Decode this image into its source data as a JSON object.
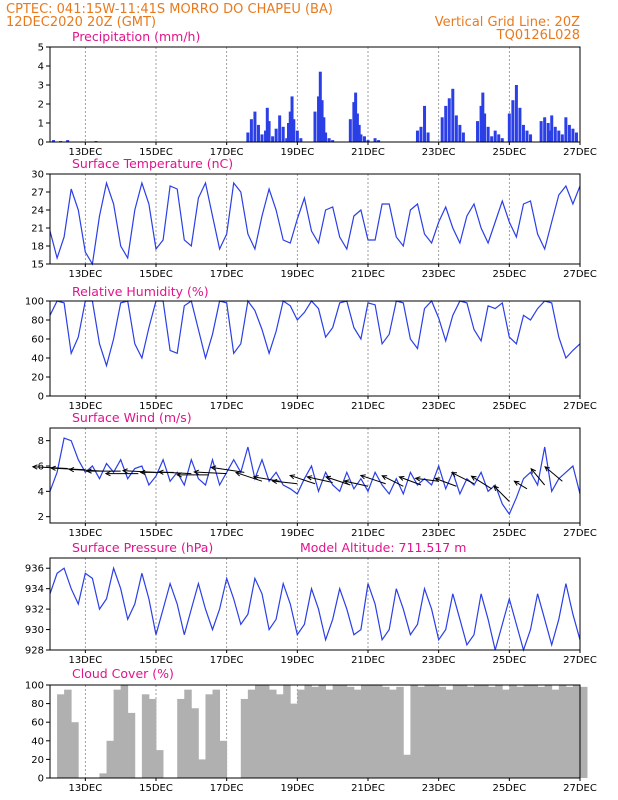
{
  "header": {
    "line1_left": "CPTEC:  041:15W-11:41S  MORRO DO CHAPEU (BA)",
    "line2_left": "12DEC2020 20Z (GMT)",
    "line2_right": "Vertical Grid Line: 20Z",
    "line3_right": "TQ0126L028"
  },
  "colors": {
    "header": "#e87a1e",
    "panel_title": "#e0148c",
    "line": "#2b3fe6",
    "bar": "#2b3fe6",
    "cloud": "#b0b0b0",
    "arrow": "#000000"
  },
  "x_axis": {
    "start_day": 12.0,
    "end_day": 27.0,
    "ticks": [
      {
        "day": 13,
        "label": "13DEC"
      },
      {
        "day": 15,
        "label": "15DEC"
      },
      {
        "day": 17,
        "label": "17DEC"
      },
      {
        "day": 19,
        "label": "19DEC"
      },
      {
        "day": 21,
        "label": "21DEC"
      },
      {
        "day": 23,
        "label": "23DEC"
      },
      {
        "day": 25,
        "label": "25DEC"
      },
      {
        "day": 27,
        "label": "27DEC"
      }
    ]
  },
  "model_altitude": "Model Altitude: 711.517 m",
  "chart_data": [
    {
      "id": "precip",
      "type": "bar",
      "title": "Precipitation (mm/h)",
      "ylim": [
        0,
        5
      ],
      "yticks": [
        0,
        1,
        2,
        3,
        4,
        5
      ],
      "x": [
        12.1,
        12.3,
        12.5,
        13.3,
        17.6,
        17.7,
        17.8,
        17.9,
        18.0,
        18.1,
        18.15,
        18.2,
        18.3,
        18.4,
        18.5,
        18.6,
        18.7,
        18.75,
        18.8,
        18.85,
        18.9,
        19.0,
        19.1,
        19.5,
        19.6,
        19.65,
        19.7,
        19.75,
        19.8,
        19.9,
        20.0,
        20.5,
        20.6,
        20.65,
        20.7,
        20.75,
        20.8,
        20.9,
        21.0,
        21.2,
        21.3,
        22.4,
        22.5,
        22.6,
        22.7,
        23.1,
        23.2,
        23.3,
        23.4,
        23.5,
        23.6,
        23.7,
        24.1,
        24.2,
        24.25,
        24.3,
        24.4,
        24.5,
        24.6,
        24.7,
        24.8,
        25.0,
        25.1,
        25.2,
        25.3,
        25.4,
        25.5,
        25.6,
        25.9,
        26.0,
        26.1,
        26.15,
        26.2,
        26.3,
        26.4,
        26.5,
        26.6,
        26.7,
        26.8,
        26.9
      ],
      "values": [
        0.1,
        0.05,
        0.1,
        0.05,
        0.5,
        1.2,
        1.6,
        0.9,
        0.4,
        0.6,
        1.8,
        1.1,
        0.3,
        0.7,
        1.4,
        0.8,
        0.2,
        1.0,
        1.6,
        2.4,
        1.2,
        0.6,
        0.2,
        1.6,
        2.4,
        3.7,
        2.2,
        1.3,
        0.5,
        0.2,
        0.1,
        1.2,
        2.1,
        2.6,
        1.5,
        0.9,
        0.4,
        0.3,
        0.1,
        0.2,
        0.1,
        0.6,
        0.8,
        1.9,
        0.5,
        1.3,
        1.9,
        2.3,
        2.8,
        1.4,
        0.9,
        0.5,
        1.1,
        1.9,
        2.6,
        1.5,
        0.8,
        0.3,
        0.6,
        0.4,
        0.2,
        1.5,
        2.2,
        3.0,
        1.8,
        0.9,
        0.6,
        0.4,
        1.1,
        1.3,
        1.0,
        0.6,
        1.4,
        0.8,
        0.6,
        0.4,
        1.3,
        0.9,
        0.7,
        0.5
      ]
    },
    {
      "id": "temperature",
      "type": "line",
      "title": "Surface Temperature (nC)",
      "ylim": [
        15,
        30
      ],
      "yticks": [
        15,
        18,
        21,
        24,
        27,
        30
      ],
      "x": [
        12.0,
        12.2,
        12.4,
        12.6,
        12.8,
        13.0,
        13.2,
        13.4,
        13.6,
        13.8,
        14.0,
        14.2,
        14.4,
        14.6,
        14.8,
        15.0,
        15.2,
        15.4,
        15.6,
        15.8,
        16.0,
        16.2,
        16.4,
        16.6,
        16.8,
        17.0,
        17.2,
        17.4,
        17.6,
        17.8,
        18.0,
        18.2,
        18.4,
        18.6,
        18.8,
        19.0,
        19.2,
        19.4,
        19.6,
        19.8,
        20.0,
        20.2,
        20.4,
        20.6,
        20.8,
        21.0,
        21.2,
        21.4,
        21.6,
        21.8,
        22.0,
        22.2,
        22.4,
        22.6,
        22.8,
        23.0,
        23.2,
        23.4,
        23.6,
        23.8,
        24.0,
        24.2,
        24.4,
        24.6,
        24.8,
        25.0,
        25.2,
        25.4,
        25.6,
        25.8,
        26.0,
        26.2,
        26.4,
        26.6,
        26.8,
        27.0
      ],
      "values": [
        20.5,
        16.0,
        19.5,
        27.5,
        24.0,
        17.0,
        15.0,
        23.0,
        28.5,
        25.0,
        18.0,
        16.0,
        24.0,
        28.5,
        25.0,
        17.5,
        19.0,
        28.0,
        27.5,
        19.0,
        18.0,
        26.0,
        28.5,
        23.0,
        17.5,
        20.0,
        28.5,
        27.0,
        20.0,
        17.5,
        23.0,
        27.5,
        24.0,
        19.0,
        18.5,
        22.5,
        26.0,
        20.5,
        18.5,
        24.0,
        24.5,
        19.5,
        17.5,
        23.0,
        24.0,
        19.0,
        19.0,
        25.0,
        25.0,
        19.5,
        18.0,
        24.0,
        25.0,
        20.0,
        18.5,
        22.0,
        24.5,
        21.0,
        18.5,
        23.0,
        25.0,
        21.0,
        18.5,
        22.0,
        25.5,
        22.0,
        19.5,
        25.0,
        25.5,
        20.0,
        17.5,
        22.0,
        26.5,
        28.0,
        25.0,
        28.0
      ]
    },
    {
      "id": "humidity",
      "type": "line",
      "title": "Relative Humidity (%)",
      "ylim": [
        0,
        100
      ],
      "yticks": [
        0,
        20,
        40,
        60,
        80,
        100
      ],
      "x": [
        12.0,
        12.2,
        12.4,
        12.6,
        12.8,
        13.0,
        13.2,
        13.4,
        13.6,
        13.8,
        14.0,
        14.2,
        14.4,
        14.6,
        14.8,
        15.0,
        15.2,
        15.4,
        15.6,
        15.8,
        16.0,
        16.2,
        16.4,
        16.6,
        16.8,
        17.0,
        17.2,
        17.4,
        17.6,
        17.8,
        18.0,
        18.2,
        18.4,
        18.6,
        18.8,
        19.0,
        19.2,
        19.4,
        19.6,
        19.8,
        20.0,
        20.2,
        20.4,
        20.6,
        20.8,
        21.0,
        21.2,
        21.4,
        21.6,
        21.8,
        22.0,
        22.2,
        22.4,
        22.6,
        22.8,
        23.0,
        23.2,
        23.4,
        23.6,
        23.8,
        24.0,
        24.2,
        24.4,
        24.6,
        24.8,
        25.0,
        25.2,
        25.4,
        25.6,
        25.8,
        26.0,
        26.2,
        26.4,
        26.6,
        26.8,
        27.0
      ],
      "values": [
        85,
        100,
        98,
        45,
        62,
        100,
        100,
        55,
        32,
        60,
        98,
        100,
        55,
        40,
        72,
        100,
        100,
        48,
        45,
        95,
        100,
        70,
        40,
        65,
        100,
        98,
        45,
        55,
        100,
        90,
        70,
        45,
        68,
        100,
        95,
        80,
        88,
        100,
        92,
        62,
        72,
        98,
        100,
        72,
        60,
        98,
        96,
        55,
        65,
        100,
        98,
        60,
        50,
        92,
        100,
        82,
        58,
        85,
        100,
        98,
        70,
        58,
        95,
        92,
        98,
        62,
        55,
        85,
        80,
        92,
        100,
        98,
        62,
        40,
        48,
        55
      ]
    },
    {
      "id": "wind",
      "type": "line",
      "title": "Surface Wind (m/s)",
      "ylim": [
        1.5,
        9
      ],
      "yticks": [
        2,
        4,
        6,
        8
      ],
      "x": [
        12.0,
        12.2,
        12.4,
        12.6,
        12.8,
        13.0,
        13.2,
        13.4,
        13.6,
        13.8,
        14.0,
        14.2,
        14.4,
        14.6,
        14.8,
        15.0,
        15.2,
        15.4,
        15.6,
        15.8,
        16.0,
        16.2,
        16.4,
        16.6,
        16.8,
        17.0,
        17.2,
        17.4,
        17.6,
        17.8,
        18.0,
        18.2,
        18.4,
        18.6,
        18.8,
        19.0,
        19.2,
        19.4,
        19.6,
        19.8,
        20.0,
        20.2,
        20.4,
        20.6,
        20.8,
        21.0,
        21.2,
        21.4,
        21.6,
        21.8,
        22.0,
        22.2,
        22.4,
        22.6,
        22.8,
        23.0,
        23.2,
        23.4,
        23.6,
        23.8,
        24.0,
        24.2,
        24.4,
        24.6,
        24.8,
        25.0,
        25.2,
        25.4,
        25.6,
        25.8,
        26.0,
        26.2,
        26.4,
        26.6,
        26.8,
        27.0
      ],
      "values": [
        4.0,
        5.5,
        8.2,
        8.0,
        6.5,
        5.5,
        6.0,
        5.0,
        6.2,
        5.5,
        6.5,
        5.0,
        5.8,
        6.0,
        4.5,
        5.2,
        6.5,
        4.8,
        5.5,
        4.5,
        6.5,
        5.0,
        4.5,
        6.5,
        4.5,
        5.5,
        6.5,
        5.5,
        7.5,
        5.0,
        6.5,
        4.8,
        5.5,
        4.5,
        4.2,
        3.8,
        5.0,
        6.0,
        4.0,
        5.5,
        4.5,
        4.0,
        5.5,
        4.2,
        5.0,
        4.0,
        5.5,
        4.5,
        3.8,
        5.0,
        3.8,
        5.5,
        4.5,
        5.0,
        4.5,
        6.0,
        4.2,
        5.5,
        3.8,
        5.0,
        4.5,
        5.5,
        4.0,
        4.5,
        3.0,
        2.2,
        3.5,
        5.0,
        5.5,
        4.5,
        7.5,
        4.0,
        5.0,
        5.5,
        6.0,
        3.8
      ]
    },
    {
      "id": "pressure",
      "type": "line",
      "title": "Surface Pressure (hPa)",
      "ylim": [
        928,
        937
      ],
      "yticks": [
        928,
        930,
        932,
        934,
        936
      ],
      "x": [
        12.0,
        12.2,
        12.4,
        12.6,
        12.8,
        13.0,
        13.2,
        13.4,
        13.6,
        13.8,
        14.0,
        14.2,
        14.4,
        14.6,
        14.8,
        15.0,
        15.2,
        15.4,
        15.6,
        15.8,
        16.0,
        16.2,
        16.4,
        16.6,
        16.8,
        17.0,
        17.2,
        17.4,
        17.6,
        17.8,
        18.0,
        18.2,
        18.4,
        18.6,
        18.8,
        19.0,
        19.2,
        19.4,
        19.6,
        19.8,
        20.0,
        20.2,
        20.4,
        20.6,
        20.8,
        21.0,
        21.2,
        21.4,
        21.6,
        21.8,
        22.0,
        22.2,
        22.4,
        22.6,
        22.8,
        23.0,
        23.2,
        23.4,
        23.6,
        23.8,
        24.0,
        24.2,
        24.4,
        24.6,
        24.8,
        25.0,
        25.2,
        25.4,
        25.6,
        25.8,
        26.0,
        26.2,
        26.4,
        26.6,
        26.8,
        27.0
      ],
      "values": [
        933.5,
        935.5,
        936.0,
        934.0,
        932.5,
        935.5,
        935.0,
        932.0,
        933.0,
        936.0,
        934.0,
        931.0,
        932.5,
        935.5,
        933.0,
        929.5,
        932.0,
        934.5,
        932.5,
        929.5,
        932.0,
        934.5,
        932.0,
        930.0,
        932.0,
        935.0,
        933.0,
        930.5,
        931.5,
        935.0,
        933.5,
        930.0,
        931.0,
        934.5,
        932.5,
        929.5,
        930.5,
        934.0,
        932.0,
        929.0,
        931.0,
        934.0,
        932.0,
        929.5,
        930.0,
        934.5,
        932.5,
        929.0,
        930.0,
        934.0,
        932.0,
        929.5,
        930.5,
        934.0,
        932.0,
        929.0,
        930.0,
        933.5,
        931.0,
        928.5,
        929.5,
        933.5,
        931.0,
        928.0,
        930.5,
        933.0,
        930.5,
        928.0,
        930.0,
        933.5,
        931.0,
        928.5,
        931.0,
        934.5,
        931.5,
        929.0
      ]
    },
    {
      "id": "cloud",
      "type": "area",
      "title": "Cloud Cover (%)",
      "ylim": [
        0,
        100
      ],
      "yticks": [
        0,
        20,
        40,
        60,
        80,
        100
      ],
      "x": [
        12.0,
        12.2,
        12.4,
        12.6,
        12.8,
        13.0,
        13.2,
        13.4,
        13.6,
        13.8,
        14.0,
        14.2,
        14.4,
        14.6,
        14.8,
        15.0,
        15.2,
        15.4,
        15.6,
        15.8,
        16.0,
        16.2,
        16.4,
        16.6,
        16.8,
        17.0,
        17.2,
        17.4,
        17.6,
        17.8,
        18.0,
        18.2,
        18.4,
        18.6,
        18.8,
        19.0,
        19.2,
        19.4,
        19.6,
        19.8,
        20.0,
        20.2,
        20.4,
        20.6,
        20.8,
        21.0,
        21.2,
        21.4,
        21.6,
        21.8,
        22.0,
        22.2,
        22.4,
        22.6,
        22.8,
        23.0,
        23.2,
        23.4,
        23.6,
        23.8,
        24.0,
        24.2,
        24.4,
        24.6,
        24.8,
        25.0,
        25.2,
        25.4,
        25.6,
        25.8,
        26.0,
        26.2,
        26.4,
        26.6,
        26.8,
        27.0
      ],
      "values": [
        0,
        90,
        95,
        60,
        0,
        0,
        0,
        5,
        40,
        95,
        100,
        70,
        0,
        90,
        85,
        30,
        0,
        0,
        85,
        95,
        75,
        20,
        90,
        95,
        40,
        0,
        0,
        85,
        95,
        100,
        100,
        95,
        90,
        100,
        80,
        95,
        100,
        98,
        100,
        95,
        100,
        100,
        98,
        95,
        100,
        100,
        100,
        98,
        95,
        98,
        25,
        100,
        98,
        100,
        100,
        98,
        95,
        100,
        100,
        98,
        100,
        100,
        98,
        100,
        95,
        100,
        98,
        100,
        100,
        98,
        100,
        95,
        100,
        98,
        100,
        98
      ]
    }
  ],
  "wind_arrows": {
    "x": [
      12.5,
      13.0,
      13.5,
      14.0,
      14.5,
      15.0,
      15.5,
      16.0,
      16.5,
      17.0,
      17.5,
      18.0,
      18.5,
      19.0,
      19.5,
      20.0,
      20.5,
      21.0,
      21.5,
      22.0,
      22.5,
      23.0,
      23.5,
      24.0,
      24.5,
      25.0,
      25.5,
      26.0,
      26.5
    ],
    "u": [
      -1.0,
      -1.0,
      -1.0,
      -1.0,
      -1.0,
      -1.0,
      -1.0,
      -1.0,
      -1.0,
      -1.0,
      -1.0,
      -0.9,
      -0.9,
      -0.9,
      -0.9,
      -0.9,
      -0.9,
      -0.9,
      -0.9,
      -0.8,
      -0.8,
      -0.8,
      -0.8,
      -0.8,
      -0.8,
      -0.8,
      -0.5,
      -0.5,
      -0.6
    ],
    "v": [
      0.05,
      0.05,
      0.05,
      0.0,
      0.0,
      0.05,
      0.0,
      0.05,
      0.0,
      0.05,
      0.15,
      0.3,
      0.15,
      0.1,
      0.3,
      0.2,
      0.3,
      0.2,
      0.3,
      0.4,
      0.3,
      0.1,
      0.3,
      0.4,
      0.5,
      0.8,
      0.3,
      0.6,
      0.5
    ],
    "speed": [
      5.8,
      5.7,
      5.6,
      5.6,
      5.4,
      5.5,
      5.5,
      5.4,
      5.3,
      5.4,
      5.5,
      4.8,
      4.8,
      4.6,
      4.6,
      4.7,
      4.5,
      4.4,
      4.6,
      4.4,
      4.5,
      4.8,
      4.4,
      4.6,
      4.2,
      3.2,
      4.2,
      4.5,
      4.8
    ]
  }
}
